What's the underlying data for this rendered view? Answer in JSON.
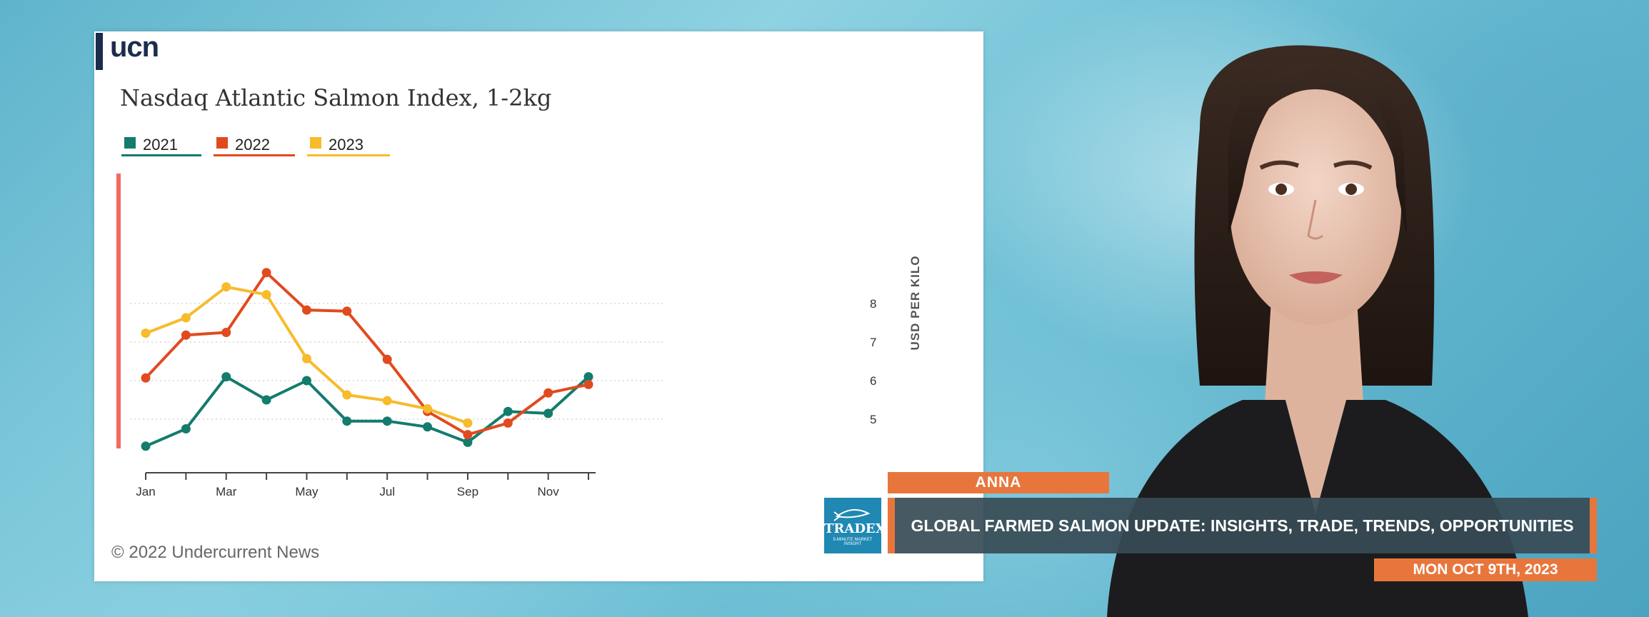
{
  "logo": {
    "text": "ucn"
  },
  "chart_data": {
    "type": "line",
    "title": "Nasdaq Atlantic Salmon Index, 1-2kg",
    "ylabel": "USD PER KILO",
    "xlabel": "",
    "x_tick_labels": [
      "Jan",
      "Mar",
      "May",
      "Jul",
      "Sep",
      "Nov"
    ],
    "y_tick_labels": [
      "5",
      "6",
      "7",
      "8"
    ],
    "y_axis_position": "right",
    "ylim": [
      3.8,
      8.8
    ],
    "months": [
      1,
      2,
      3,
      4,
      5,
      6,
      7,
      8,
      9,
      10,
      11,
      12
    ],
    "grid": true,
    "legend_position": "top-left",
    "series": [
      {
        "name": "2021",
        "color": "#137c6c",
        "values": [
          4.3,
          4.75,
          6.1,
          5.5,
          6.0,
          4.95,
          4.95,
          4.8,
          4.4,
          5.2,
          5.15,
          6.1
        ]
      },
      {
        "name": "2022",
        "color": "#e14a1f",
        "values": [
          6.07,
          7.18,
          7.25,
          8.8,
          7.83,
          7.8,
          6.55,
          5.2,
          4.6,
          4.9,
          5.68,
          5.9
        ]
      },
      {
        "name": "2023",
        "color": "#f7bb2c",
        "values": [
          7.23,
          7.63,
          8.43,
          8.23,
          6.57,
          5.63,
          5.48,
          5.27,
          4.9
        ]
      }
    ]
  },
  "copyright": "© 2022 Undercurrent News",
  "lower_third": {
    "name": "ANNA",
    "headline": "GLOBAL FARMED SALMON UPDATE: INSIGHTS, TRADE, TRENDS, OPPORTUNITIES",
    "date": "MON OCT 9TH, 2023",
    "logo_text": "TRADEX",
    "logo_subtext": "5-MINUTE MARKET INSIGHT"
  },
  "colors": {
    "accent": "#e8763c",
    "headline_bg": "#374b55",
    "logo_bg": "#1f88b3",
    "highlight_bar": "#f26b5b"
  }
}
